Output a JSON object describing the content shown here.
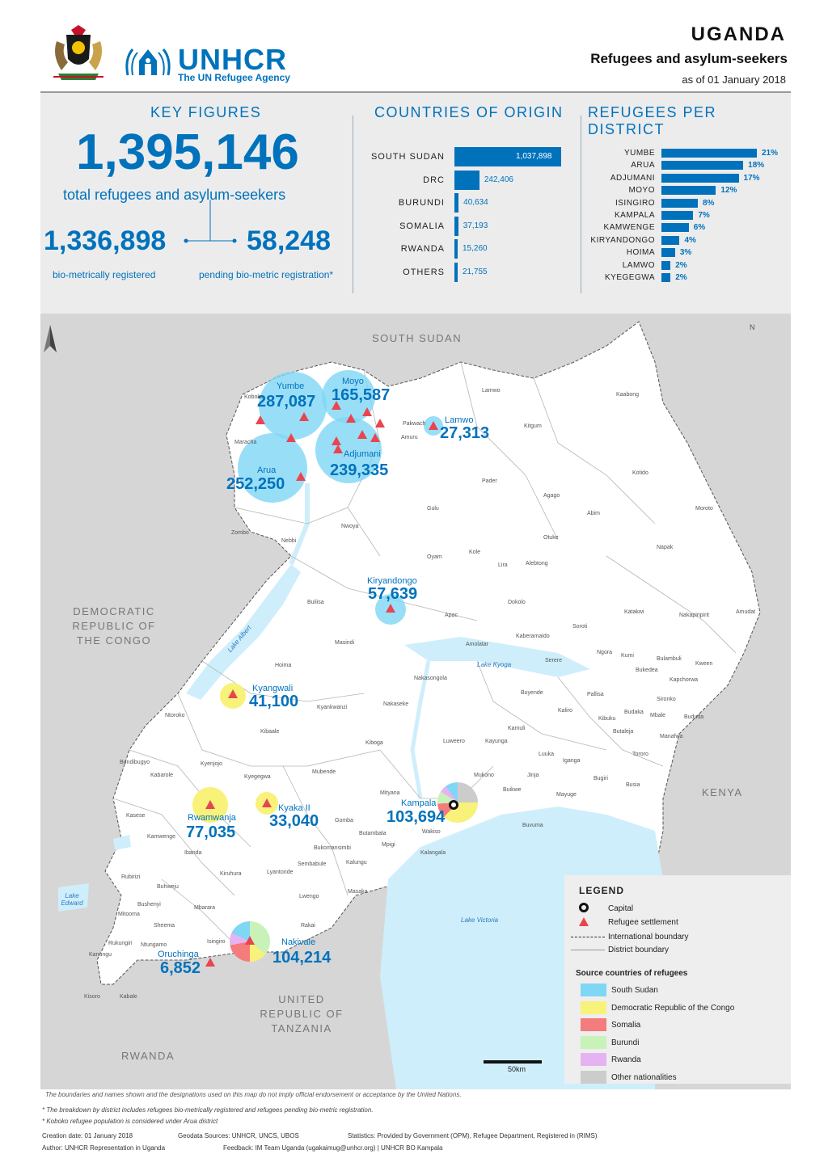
{
  "header": {
    "org_name": "UNHCR",
    "org_sub": "The UN Refugee Agency",
    "country": "UGANDA",
    "subtitle": "Refugees and asylum-seekers",
    "date": "as of 01 January 2018"
  },
  "key_figures": {
    "title": "KEY FIGURES",
    "total": "1,395,146",
    "total_label": "total refugees and asylum-seekers",
    "registered": "1,336,898",
    "registered_label": "bio-metrically registered",
    "pending": "58,248",
    "pending_label": "pending bio-metric registration*"
  },
  "countries_of_origin": {
    "title": "COUNTRIES OF ORIGIN",
    "rows": [
      {
        "label": "SOUTH SUDAN",
        "value": 1037898,
        "display": "1,037,898"
      },
      {
        "label": "DRC",
        "value": 242406,
        "display": "242,406"
      },
      {
        "label": "BURUNDI",
        "value": 40634,
        "display": "40,634"
      },
      {
        "label": "SOMALIA",
        "value": 37193,
        "display": "37,193"
      },
      {
        "label": "RWANDA",
        "value": 15260,
        "display": "15,260"
      },
      {
        "label": "OTHERS",
        "value": 21755,
        "display": "21,755"
      }
    ]
  },
  "refugees_per_district": {
    "title": "REFUGEES PER DISTRICT",
    "rows": [
      {
        "label": "YUMBE",
        "value": 21,
        "display": "21%"
      },
      {
        "label": "ARUA",
        "value": 18,
        "display": "18%"
      },
      {
        "label": "ADJUMANI",
        "value": 17,
        "display": "17%"
      },
      {
        "label": "MOYO",
        "value": 12,
        "display": "12%"
      },
      {
        "label": "ISINGIRO",
        "value": 8,
        "display": "8%"
      },
      {
        "label": "KAMPALA",
        "value": 7,
        "display": "7%"
      },
      {
        "label": "KAMWENGE",
        "value": 6,
        "display": "6%"
      },
      {
        "label": "KIRYANDONGO",
        "value": 4,
        "display": "4%"
      },
      {
        "label": "HOIMA",
        "value": 3,
        "display": "3%"
      },
      {
        "label": "LAMWO",
        "value": 2,
        "display": "2%"
      },
      {
        "label": "KYEGEGWA",
        "value": 2,
        "display": "2%"
      }
    ]
  },
  "map": {
    "neighbours": {
      "south_sudan": "SOUTH SUDAN",
      "drc": "DEMOCRATIC REPUBLIC OF THE CONGO",
      "kenya": "KENYA",
      "tanzania": "UNITED REPUBLIC OF TANZANIA",
      "rwanda": "RWANDA"
    },
    "settlements": [
      {
        "name": "Yumbe",
        "value": "287,087"
      },
      {
        "name": "Moyo",
        "value": "165,587"
      },
      {
        "name": "Lamwo",
        "value": "27,313"
      },
      {
        "name": "Adjumani",
        "value": "239,335"
      },
      {
        "name": "Arua",
        "value": "252,250"
      },
      {
        "name": "Kiryandongo",
        "value": "57,639"
      },
      {
        "name": "Kyangwali",
        "value": "41,100"
      },
      {
        "name": "Rwamwanja",
        "value": "77,035"
      },
      {
        "name": "Kyaka II",
        "value": "33,040"
      },
      {
        "name": "Kampala",
        "value": "103,694"
      },
      {
        "name": "Nakivale",
        "value": "104,214"
      },
      {
        "name": "Oruchinga",
        "value": "6,852"
      }
    ],
    "districts": [
      "Kaabong",
      "Lamwo",
      "Kitgum",
      "Pader",
      "Agago",
      "Kotido",
      "Moroto",
      "Abim",
      "Napak",
      "Otuke",
      "Alebtong",
      "Lira",
      "Kole",
      "Oyam",
      "Gulu",
      "Nwoya",
      "Amuru",
      "Pakwach",
      "Koboko",
      "Maracha",
      "Zombo",
      "Nebbi",
      "Buliisa",
      "Masindi",
      "Apac",
      "Dokolo",
      "Amolatar",
      "Kaberamaido",
      "Soroti",
      "Katakwi",
      "Nakapiripirit",
      "Amudat",
      "Kumi",
      "Ngora",
      "Serere",
      "Bukedea",
      "Kapchorwa",
      "Bulambuli",
      "Kween",
      "Bududa",
      "Pallisa",
      "Budaka",
      "Mbale",
      "Manafwa",
      "Tororo",
      "Busia",
      "Bugiri",
      "Mayuge",
      "Jinja",
      "Buikwe",
      "Mukono",
      "Kayunga",
      "Kamuli",
      "Luuka",
      "Iganga",
      "Buyende",
      "Kaliro",
      "Kibuku",
      "Butaleja",
      "Sironko",
      "Nakasongola",
      "Nakaseke",
      "Kiboga",
      "Luweero",
      "Kyankwanzi",
      "Kibaale",
      "Hoima",
      "Ntoroko",
      "Bundibugyo",
      "Kabarole",
      "Kyenjojo",
      "Kyegegwa",
      "Mubende",
      "Mityana",
      "Wakiso",
      "Mpigi",
      "Butambala",
      "Gomba",
      "Bukomansimbi",
      "Sembabule",
      "Lwengo",
      "Kalungu",
      "Masaka",
      "Rakai",
      "Isingiro",
      "Mbarara",
      "Kiruhura",
      "Ibanda",
      "Buhweju",
      "Sheema",
      "Bushenyi",
      "Mitooma",
      "Rubirizi",
      "Kasese",
      "Kamwenge",
      "Ntungamo",
      "Rukungiri",
      "Kanungu",
      "Kisoro",
      "Kabale",
      "Lyantonde",
      "Buvuma",
      "Kalangala"
    ],
    "lakes": {
      "albert": "Lake Albert",
      "kyoga": "Lake Kyoga",
      "victoria": "Lake Victoria",
      "edward": "Lake Edward"
    },
    "north": "N",
    "scale_label": "50km"
  },
  "legend": {
    "title": "LEGEND",
    "items": [
      {
        "label": "Capital"
      },
      {
        "label": "Refugee settlement"
      },
      {
        "label": "International boundary"
      },
      {
        "label": "District boundary"
      }
    ],
    "source_title": "Source countries of refugees",
    "sources": [
      {
        "label": "South Sudan",
        "color": "#7fd6f5"
      },
      {
        "label": "Democratic Republic of the Congo",
        "color": "#f8f27a"
      },
      {
        "label": "Somalia",
        "color": "#f47c7c"
      },
      {
        "label": "Burundi",
        "color": "#c9f2b8"
      },
      {
        "label": "Rwanda",
        "color": "#e6b3f2"
      },
      {
        "label": "Other nationalities",
        "color": "#cccccc"
      }
    ]
  },
  "footer": {
    "disclaimer": "The boundaries and names shown and the designations used on this map do not imply official endorsement or acceptance by the United Nations.",
    "note1": "* The breakdown by district includes refugees bio-metrically registered and refugees pending bio-metric registration.",
    "note2": "* Koboko refugee population is considered under Arua district",
    "creation": "Creation date: 01 January 2018",
    "geodata": "Geodata Sources: UNHCR, UNCS, UBOS",
    "statistics": "Statistics: Provided by Government (OPM), Refugee Department, Registered in (RIMS)",
    "author": "Author: UNHCR Representation in Uganda",
    "feedback": "Feedback: IM Team Uganda (ugakaimug@unhcr.org) | UNHCR BO Kampala"
  },
  "colors": {
    "brand": "#0072bc",
    "lake": "#cfeefb",
    "land": "#ffffff",
    "outside": "#d6d6d6"
  }
}
